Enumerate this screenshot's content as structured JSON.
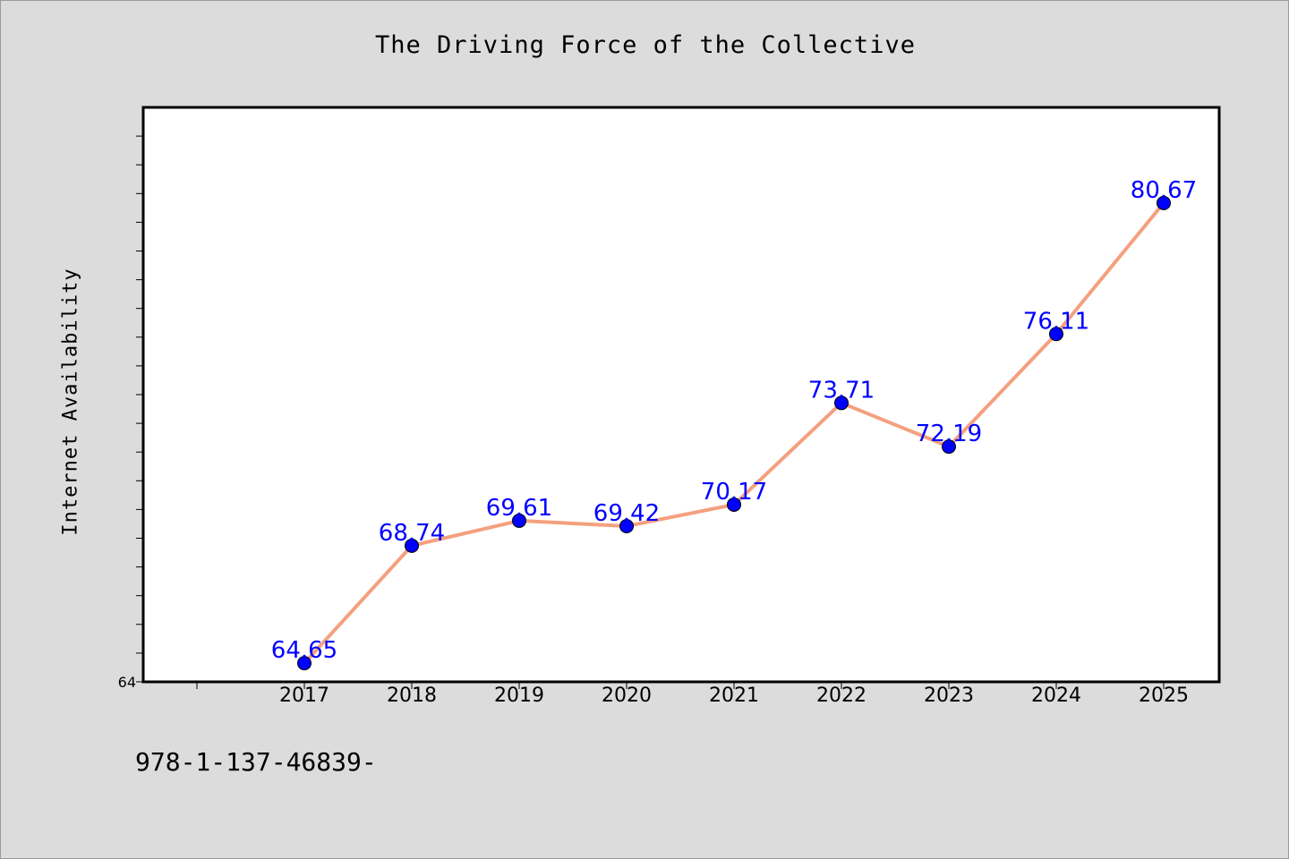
{
  "chart_data": {
    "type": "line",
    "title": "The Driving Force of the Collective",
    "xlabel": "",
    "ylabel": "Internet Availability",
    "categories": [
      "2017",
      "2018",
      "2019",
      "2020",
      "2021",
      "2022",
      "2023",
      "2024",
      "2025"
    ],
    "series": [
      {
        "values": [
          64.65,
          68.74,
          69.61,
          69.42,
          70.17,
          73.71,
          72.19,
          76.11,
          80.67
        ],
        "data_labels": [
          "64.65",
          "68.74",
          "69.61",
          "69.42",
          "70.17",
          "73.71",
          "72.19",
          "76.11",
          "80.67"
        ]
      }
    ],
    "ylim": [
      64,
      84
    ],
    "y_tick_labels": [
      "64"
    ],
    "grid": false,
    "legend": "none",
    "colors": {
      "line": "#f4a07f",
      "marker": "#0000ff",
      "data_label": "#0000ff",
      "background": "#dcdcdc",
      "plot_background": "#ffffff"
    }
  },
  "footer": {
    "code": "978-1-137-46839-"
  }
}
